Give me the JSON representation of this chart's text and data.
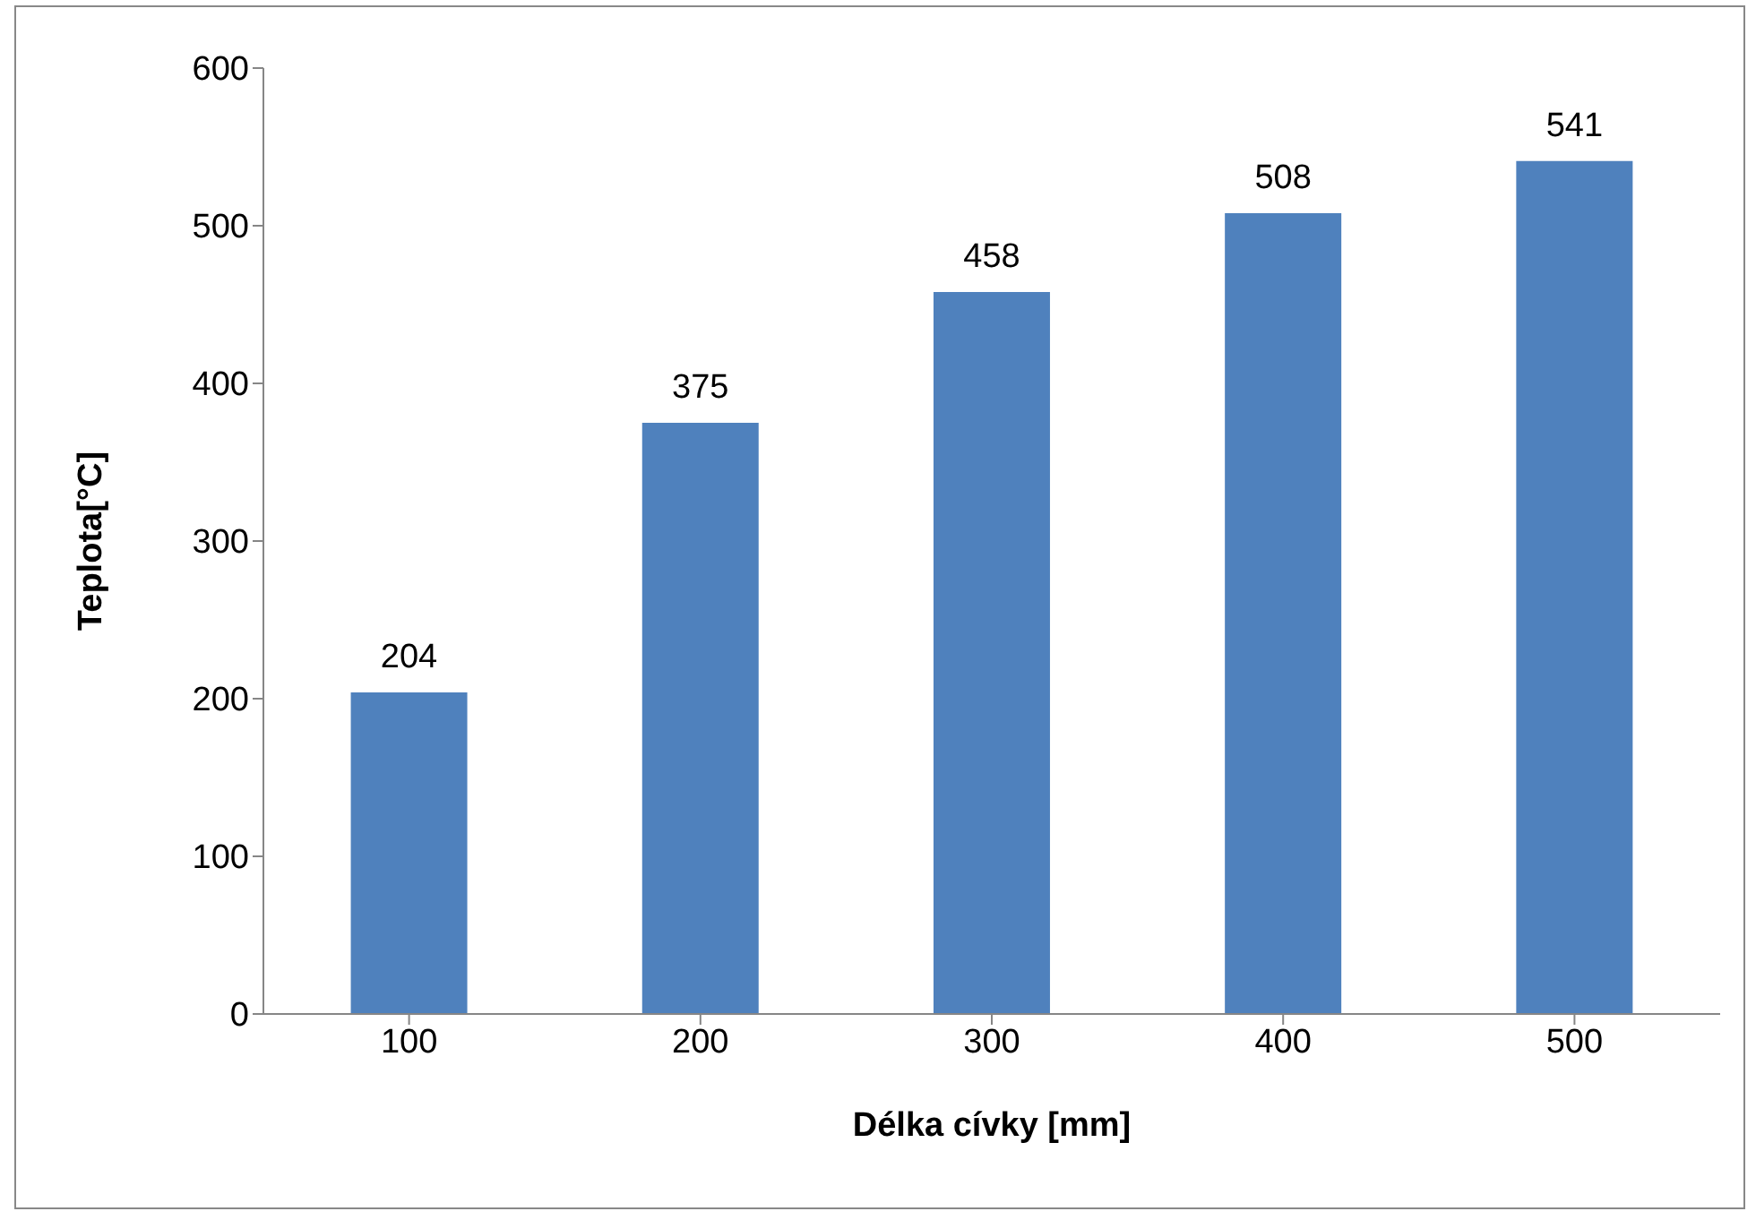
{
  "chart_data": {
    "type": "bar",
    "xlabel": "Délka cívky [mm]",
    "ylabel": "Teplota[°C]",
    "categories": [
      "100",
      "200",
      "300",
      "400",
      "500"
    ],
    "values": [
      204,
      375,
      458,
      508,
      541
    ],
    "color": "#4f81bd",
    "ylim": [
      0,
      600
    ],
    "yticks": [
      0,
      100,
      200,
      300,
      400,
      500,
      600
    ],
    "data_labels": true,
    "grid": false,
    "legend": false
  }
}
